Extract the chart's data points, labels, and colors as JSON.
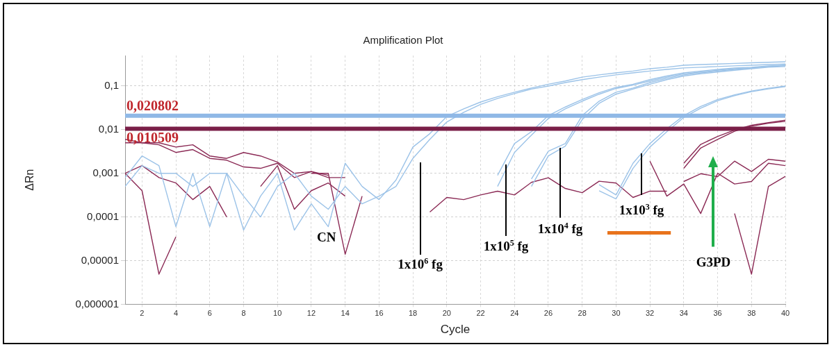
{
  "chart_data": {
    "type": "line",
    "title": "Amplification Plot",
    "xlabel": "Cycle",
    "ylabel": "ΔRn",
    "x": [
      1,
      2,
      3,
      4,
      5,
      6,
      7,
      8,
      9,
      10,
      11,
      12,
      13,
      14,
      15,
      16,
      17,
      18,
      19,
      20,
      21,
      22,
      23,
      24,
      25,
      26,
      27,
      28,
      29,
      30,
      31,
      32,
      33,
      34,
      35,
      36,
      37,
      38,
      39,
      40
    ],
    "xlim": [
      1,
      40
    ],
    "xticks": [
      2,
      4,
      6,
      8,
      10,
      12,
      14,
      16,
      18,
      20,
      22,
      24,
      26,
      28,
      30,
      32,
      34,
      36,
      38,
      40
    ],
    "log": "y",
    "ylim": [
      1e-06,
      0.5
    ],
    "yticks": [
      {
        "value": 1e-06,
        "label": "0,000001"
      },
      {
        "value": 1e-05,
        "label": "0,00001"
      },
      {
        "value": 0.0001,
        "label": "0,0001"
      },
      {
        "value": 0.001,
        "label": "0,001"
      },
      {
        "value": 0.01,
        "label": "0,01"
      },
      {
        "value": 0.1,
        "label": "0,1"
      }
    ],
    "grid": true,
    "legend": false,
    "marker": "none",
    "line_style": "solid",
    "series": [
      {
        "color": "#9cc3e8",
        "values": [
          0.0008,
          0.0025,
          0.0015,
          6e-05,
          0.001,
          6e-05,
          0.001,
          5e-05,
          0.0003,
          0.001,
          5e-05,
          0.0002,
          6e-05,
          0.0017,
          0.0005,
          0.00025,
          0.0007,
          0.004,
          0.0081,
          0.02,
          0.03,
          0.043,
          0.057,
          0.072,
          0.09,
          0.11,
          0.13,
          0.16,
          0.18,
          0.2,
          0.22,
          0.25,
          0.27,
          0.3,
          0.31,
          0.32,
          0.33,
          0.34,
          0.35,
          0.36
        ]
      },
      {
        "color": "#9cc3e8",
        "values": [
          0.0005,
          0.0015,
          0.001,
          0.001,
          0.0005,
          0.001,
          0.001,
          0.0003,
          0.0001,
          0.0005,
          0.001,
          0.0003,
          0.00015,
          0.0005,
          0.0002,
          0.0003,
          0.0005,
          0.0022,
          0.006,
          0.015,
          0.025,
          0.038,
          0.052,
          0.067,
          0.085,
          0.1,
          0.12,
          0.14,
          0.16,
          0.18,
          0.2,
          0.22,
          0.24,
          0.26,
          0.27,
          0.28,
          0.29,
          0.3,
          0.31,
          0.32
        ]
      },
      {
        "color": "#9cc3e8",
        "values": [
          null,
          null,
          null,
          null,
          null,
          null,
          null,
          null,
          null,
          null,
          null,
          null,
          null,
          null,
          null,
          null,
          null,
          null,
          null,
          null,
          null,
          null,
          0.0009,
          0.0048,
          0.009,
          0.021,
          0.033,
          0.049,
          0.07,
          0.093,
          0.11,
          0.14,
          0.17,
          0.2,
          0.22,
          0.24,
          0.26,
          0.27,
          0.29,
          0.3
        ]
      },
      {
        "color": "#9cc3e8",
        "values": [
          null,
          null,
          null,
          null,
          null,
          null,
          null,
          null,
          null,
          null,
          null,
          null,
          null,
          null,
          null,
          null,
          null,
          null,
          null,
          null,
          null,
          null,
          0.0005,
          0.003,
          0.0075,
          0.018,
          0.03,
          0.045,
          0.065,
          0.088,
          0.105,
          0.13,
          0.16,
          0.19,
          0.21,
          0.23,
          0.25,
          0.26,
          0.28,
          0.29
        ]
      },
      {
        "color": "#9cc3e8",
        "values": [
          null,
          null,
          null,
          null,
          null,
          null,
          null,
          null,
          null,
          null,
          null,
          null,
          null,
          null,
          null,
          null,
          null,
          null,
          null,
          null,
          null,
          null,
          null,
          null,
          0.00074,
          0.0032,
          0.0048,
          0.021,
          0.045,
          0.072,
          0.09,
          0.12,
          0.15,
          0.18,
          0.2,
          0.22,
          0.24,
          0.26,
          0.28,
          0.3
        ]
      },
      {
        "color": "#9cc3e8",
        "values": [
          null,
          null,
          null,
          null,
          null,
          null,
          null,
          null,
          null,
          null,
          null,
          null,
          null,
          null,
          null,
          null,
          null,
          null,
          null,
          null,
          null,
          null,
          null,
          null,
          0.0005,
          0.0025,
          0.0042,
          0.017,
          0.04,
          0.065,
          0.085,
          0.11,
          0.14,
          0.17,
          0.19,
          0.21,
          0.23,
          0.25,
          0.27,
          0.28
        ]
      },
      {
        "color": "#9cc3e8",
        "values": [
          null,
          null,
          null,
          null,
          null,
          null,
          null,
          null,
          null,
          null,
          null,
          null,
          null,
          null,
          null,
          null,
          null,
          null,
          null,
          null,
          null,
          null,
          null,
          null,
          null,
          null,
          null,
          null,
          0.00055,
          0.00032,
          0.0017,
          0.0048,
          0.0105,
          0.021,
          0.034,
          0.049,
          0.063,
          0.077,
          0.089,
          0.1
        ]
      },
      {
        "color": "#9cc3e8",
        "values": [
          null,
          null,
          null,
          null,
          null,
          null,
          null,
          null,
          null,
          null,
          null,
          null,
          null,
          null,
          null,
          null,
          null,
          null,
          null,
          null,
          null,
          null,
          null,
          null,
          null,
          null,
          null,
          null,
          0.0004,
          0.00026,
          0.0013,
          0.004,
          0.009,
          0.019,
          0.031,
          0.046,
          0.06,
          0.074,
          0.086,
          0.097
        ]
      },
      {
        "color": "#8b2a55",
        "values": [
          0.006,
          0.005,
          0.005,
          0.004,
          0.0045,
          0.0025,
          0.0022,
          0.003,
          0.0025,
          0.0018,
          0.001,
          0.0011,
          0.0009,
          null,
          null,
          null,
          null,
          null,
          null,
          null,
          null,
          null,
          null,
          null,
          null,
          null,
          null,
          null,
          null,
          null,
          null,
          null,
          null,
          null,
          null,
          null,
          null,
          null,
          null,
          null
        ]
      },
      {
        "color": "#8b2a55",
        "values": [
          0.005,
          0.005,
          0.0045,
          0.003,
          0.0035,
          0.0022,
          0.002,
          0.0014,
          0.0013,
          0.0017,
          0.0008,
          0.0011,
          0.0008,
          0.0008,
          null,
          null,
          null,
          null,
          null,
          null,
          null,
          null,
          null,
          null,
          null,
          null,
          null,
          null,
          null,
          null,
          null,
          null,
          null,
          null,
          null,
          null,
          null,
          null,
          null,
          null
        ]
      },
      {
        "color": "#8b2a55",
        "values": [
          0.001,
          0.0004,
          4.9e-06,
          3.5e-05,
          null,
          null,
          null,
          null,
          null,
          null,
          null,
          0.001,
          0.001,
          1.4e-05,
          0.0003,
          null,
          null,
          null,
          null,
          null,
          null,
          null,
          null,
          null,
          null,
          null,
          null,
          null,
          null,
          null,
          null,
          null,
          null,
          null,
          null,
          null,
          null,
          null,
          null,
          null
        ]
      },
      {
        "color": "#8b2a55",
        "values": [
          0.001,
          0.0015,
          0.0008,
          0.0006,
          0.00025,
          0.0005,
          0.0001,
          null,
          0.0005,
          0.0015,
          0.00015,
          0.0004,
          0.0006,
          0.0003,
          null,
          null,
          null,
          null,
          null,
          null,
          null,
          null,
          null,
          null,
          null,
          null,
          null,
          null,
          null,
          null,
          null,
          null,
          null,
          null,
          null,
          null,
          null,
          null,
          null,
          null
        ]
      },
      {
        "color": "#8b2a55",
        "values": [
          null,
          null,
          null,
          null,
          null,
          null,
          null,
          null,
          null,
          null,
          null,
          null,
          null,
          null,
          null,
          null,
          null,
          null,
          0.00013,
          0.00028,
          0.00025,
          0.00032,
          0.00039,
          0.00032,
          0.00062,
          0.00079,
          0.00045,
          0.00036,
          0.00066,
          0.0006,
          0.00028,
          0.00039,
          0.00039,
          null,
          null,
          null,
          null,
          null,
          null,
          null
        ]
      },
      {
        "color": "#8b2a55",
        "values": [
          null,
          null,
          null,
          null,
          null,
          null,
          null,
          null,
          null,
          null,
          null,
          null,
          null,
          null,
          null,
          null,
          null,
          null,
          null,
          null,
          null,
          null,
          null,
          null,
          null,
          null,
          null,
          null,
          null,
          null,
          null,
          null,
          null,
          0.00065,
          0.00098,
          0.00084,
          0.0019,
          0.0011,
          0.0021,
          0.0019
        ]
      },
      {
        "color": "#8b2a55",
        "values": [
          null,
          null,
          null,
          null,
          null,
          null,
          null,
          null,
          null,
          null,
          null,
          null,
          null,
          null,
          null,
          null,
          null,
          null,
          null,
          null,
          null,
          null,
          null,
          null,
          null,
          null,
          null,
          null,
          null,
          null,
          null,
          null,
          null,
          null,
          null,
          null,
          0.00012,
          4.9e-06,
          0.0005,
          0.00085
        ]
      },
      {
        "color": "#8b2a55",
        "values": [
          null,
          null,
          null,
          null,
          null,
          null,
          null,
          null,
          null,
          null,
          null,
          null,
          null,
          null,
          null,
          null,
          null,
          null,
          null,
          null,
          null,
          null,
          null,
          null,
          null,
          null,
          null,
          null,
          null,
          null,
          null,
          0.0019,
          0.0003,
          0.00057,
          0.00012,
          0.001,
          0.00057,
          0.00065,
          0.0017,
          0.0015
        ]
      },
      {
        "color": "#8b2a55",
        "values": [
          null,
          null,
          null,
          null,
          null,
          null,
          null,
          null,
          null,
          null,
          null,
          null,
          null,
          null,
          null,
          null,
          null,
          null,
          null,
          null,
          null,
          null,
          null,
          null,
          null,
          null,
          null,
          null,
          null,
          null,
          null,
          null,
          null,
          0.0017,
          0.0046,
          0.007,
          0.0098,
          0.0126,
          0.0145,
          0.0165
        ]
      },
      {
        "color": "#8b2a55",
        "values": [
          null,
          null,
          null,
          null,
          null,
          null,
          null,
          null,
          null,
          null,
          null,
          null,
          null,
          null,
          null,
          null,
          null,
          null,
          null,
          null,
          null,
          null,
          null,
          null,
          null,
          null,
          null,
          null,
          null,
          null,
          null,
          null,
          null,
          0.0013,
          0.0038,
          0.006,
          0.0092,
          0.012,
          0.014,
          0.0155
        ]
      }
    ],
    "ref_lines": [
      {
        "axis": "y",
        "value": 0.020802,
        "label": "0,020802",
        "color": "#8fb8e6"
      },
      {
        "axis": "y",
        "value": 0.010509,
        "label": "0,010509",
        "color": "#7a1f48"
      }
    ],
    "annotations": [
      "CN",
      "1x10$^{6}$ fg",
      {
        "text": "1x10$^{5}$ fg",
        "x": 23.5,
        "y": 0.0016
      },
      {
        "text": "1x10$^{4}$ fg",
        "x": 26.7,
        "y": 0.0039
      },
      {
        "text": "1x10$^{3}$ fg",
        "x": 31.5,
        "y": 0.0029
      },
      "G3PD"
    ]
  }
}
